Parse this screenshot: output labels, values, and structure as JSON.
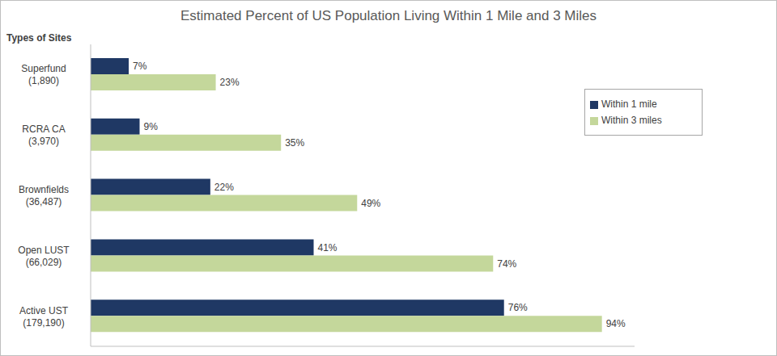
{
  "chart_data": {
    "type": "bar",
    "title": "Estimated Percent of US Population Living Within 1 Mile and 3 Miles",
    "y_label": "Types of Sites",
    "orientation": "horizontal",
    "categories": [
      "Superfund\n(1,890)",
      "RCRA CA\n(3,970)",
      "Brownfields\n(36,487)",
      "Open LUST\n(66,029)",
      "Active UST\n(179,190)"
    ],
    "series": [
      {
        "name": "Within 1 mile",
        "color": "#1f3864",
        "values": [
          7,
          9,
          22,
          41,
          76
        ],
        "value_labels": [
          "7%",
          "9%",
          "22%",
          "41%",
          "76%"
        ]
      },
      {
        "name": "Within 3 miles",
        "color": "#c4d79b",
        "values": [
          23,
          35,
          49,
          74,
          94
        ],
        "value_labels": [
          "23%",
          "35%",
          "49%",
          "74%",
          "94%"
        ]
      }
    ],
    "xlim": [
      0,
      100
    ],
    "data_labels": true,
    "tick_labels": "y",
    "legend": "upper right",
    "grid": false
  }
}
